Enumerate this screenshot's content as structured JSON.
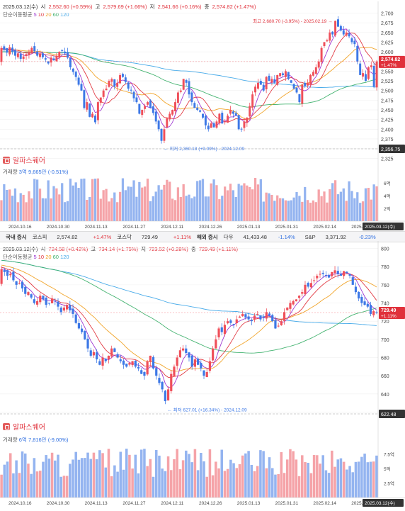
{
  "top": {
    "header": {
      "date": "2025.03.12(수)",
      "open_lbl": "시",
      "open": "2,552.60 (+0.59%)",
      "high_lbl": "고",
      "high": "2,579.69 (+1.66%)",
      "low_lbl": "저",
      "low": "2,541.66 (+0.16%)",
      "close_lbl": "종",
      "close": "2,574.82 (+1.47%)"
    },
    "ma_legend": {
      "label": "단순이동평균",
      "p5": "5",
      "p10": "10",
      "p20": "20",
      "p60": "60",
      "p120": "120"
    },
    "brand": "알파스퀘어",
    "volume": {
      "label": "거래량",
      "value": "3억 9,665만 (-0.51%)"
    },
    "hi_note": "최고 2,680.70 (-3.95%) - 2025.02.19 →",
    "lo_note": "← 최저 2,360.18 (+9.09%) - 2024.12.09",
    "last_tag": "2,574.82",
    "last_pct": "+1.47%",
    "min_tag": "2,356.75",
    "date_tag": "2025.03.12(수)",
    "vol_ticks": [
      "6억",
      "4억",
      "2억"
    ]
  },
  "ticker": {
    "domestic": "국내 증시",
    "kospi": "코스피",
    "kospi_v": "2,574.82",
    "kospi_c": "+1.47%",
    "kosdaq": "코스닥",
    "kosdaq_v": "729.49",
    "kosdaq_c": "+1.11%",
    "foreign": "해외 증시",
    "dow": "다우",
    "dow_v": "41,433.48",
    "dow_c": "-1.14%",
    "snp": "S&P",
    "snp_v": "3,371.92",
    "snp_c": "-0.23%"
  },
  "bottom": {
    "header": {
      "date": "2025.03.12(수)",
      "open_lbl": "시",
      "open": "724.58 (+0.42%)",
      "high_lbl": "고",
      "high": "734.14 (+1.75%)",
      "low_lbl": "저",
      "low": "723.52 (+0.28%)",
      "close_lbl": "종",
      "close": "729.49 (+1.11%)"
    },
    "ma_legend": {
      "label": "단순이동평균",
      "p5": "5",
      "p10": "10",
      "p20": "20",
      "p60": "60",
      "p120": "120"
    },
    "brand": "알파스퀘어",
    "volume": {
      "label": "거래량",
      "value": "6억 7,816만 (-9.00%)"
    },
    "hi_note": "최고 781.54 (-6.66%) - 2025.02.20 →",
    "lo_note": "← 최저 627.01 (+16.34%) - 2024.12.09",
    "last_tag": "729.49",
    "last_pct": "+1.11%",
    "min_tag": "622.48",
    "date_tag": "2025.03.12(수)",
    "vol_ticks": [
      "7.5억",
      "5억",
      "2.5억"
    ]
  },
  "colors": {
    "up": "#ef4f5a",
    "down": "#3d78e6",
    "vol_up": "#f5a3a8",
    "vol_down": "#94b4f0",
    "ma5": "#9b2fd1",
    "ma10": "#e0313b",
    "ma20": "#f0a020",
    "ma60": "#3cb06a",
    "ma120": "#3fa6e8"
  },
  "chart_data": [
    {
      "type": "candlestick",
      "title": "코스피",
      "x_ticks": [
        "2024.10.16",
        "2024.10.30",
        "2024.11.13",
        "2024.11.27",
        "2024.12.11",
        "2024.12.26",
        "2025.01.13",
        "2025.01.31",
        "2025.02.14",
        "2025.02.28"
      ],
      "y_ticks": [
        2700,
        2675,
        2650,
        2625,
        2600,
        2575,
        2550,
        2525,
        2500,
        2475,
        2450,
        2425,
        2400,
        2375,
        2350,
        2325
      ],
      "ylim": [
        2320,
        2712
      ],
      "closes": [
        2610,
        2605,
        2598,
        2612,
        2600,
        2590,
        2596,
        2582,
        2588,
        2594,
        2600,
        2610,
        2602,
        2590,
        2596,
        2586,
        2580,
        2570,
        2585,
        2578,
        2590,
        2600,
        2604,
        2596,
        2585,
        2560,
        2548,
        2535,
        2515,
        2500,
        2455,
        2470,
        2432,
        2440,
        2418,
        2470,
        2482,
        2500,
        2505,
        2525,
        2530,
        2510,
        2520,
        2540,
        2535,
        2522,
        2505,
        2500,
        2480,
        2470,
        2440,
        2450,
        2460,
        2470,
        2455,
        2442,
        2420,
        2400,
        2370,
        2400,
        2428,
        2440,
        2450,
        2470,
        2495,
        2500,
        2530,
        2520,
        2490,
        2470,
        2455,
        2450,
        2445,
        2430,
        2410,
        2400,
        2415,
        2405,
        2420,
        2440,
        2415,
        2420,
        2435,
        2450,
        2440,
        2435,
        2400,
        2400,
        2420,
        2430,
        2460,
        2490,
        2510,
        2520,
        2515,
        2500,
        2535,
        2525,
        2530,
        2520,
        2540,
        2545,
        2540,
        2550,
        2530,
        2520,
        2505,
        2495,
        2470,
        2515,
        2512,
        2520,
        2540,
        2548,
        2560,
        2575,
        2610,
        2625,
        2630,
        2650,
        2645,
        2680,
        2665,
        2655,
        2645,
        2650,
        2640,
        2625,
        2620,
        2575,
        2540,
        2545,
        2525,
        2560,
        2565,
        2510,
        2575
      ],
      "volume_unit": "억 (approx)",
      "last": {
        "close": 2574.82,
        "change_pct": 1.47
      },
      "high": {
        "value": 2680.7,
        "date": "2025.02.19"
      },
      "low": {
        "value": 2360.18,
        "date": "2024.12.09"
      }
    },
    {
      "type": "candlestick",
      "title": "코스닥",
      "x_ticks": [
        "2024.10.16",
        "2024.10.30",
        "2024.11.13",
        "2024.11.27",
        "2024.12.11",
        "2024.12.26",
        "2025.01.13",
        "2025.01.31",
        "2025.02.14",
        "2025.02.28"
      ],
      "y_ticks": [
        800,
        780,
        760,
        740,
        720,
        700,
        680,
        660,
        640,
        620
      ],
      "ylim": [
        618,
        802
      ],
      "closes": [
        777,
        774,
        770,
        772,
        765,
        760,
        762,
        756,
        750,
        752,
        746,
        740,
        742,
        748,
        744,
        738,
        740,
        745,
        742,
        736,
        730,
        735,
        738,
        732,
        728,
        718,
        712,
        708,
        700,
        690,
        682,
        686,
        678,
        672,
        680,
        676,
        682,
        690,
        686,
        680,
        676,
        672,
        670,
        674,
        676,
        670,
        668,
        662,
        660,
        676,
        682,
        668,
        660,
        652,
        645,
        632,
        645,
        662,
        670,
        680,
        688,
        690,
        685,
        680,
        670,
        678,
        672,
        668,
        660,
        664,
        676,
        690,
        700,
        712,
        708,
        716,
        720,
        718,
        716,
        722,
        725,
        728,
        724,
        722,
        720,
        726,
        728,
        722,
        724,
        730,
        726,
        720,
        712,
        715,
        720,
        730,
        735,
        740,
        742,
        744,
        748,
        752,
        760,
        758,
        762,
        765,
        770,
        772,
        772,
        770,
        768,
        774,
        776,
        772,
        770,
        775,
        773,
        770,
        760,
        752,
        745,
        740,
        738,
        736,
        728,
        731,
        729
      ],
      "last": {
        "close": 729.49,
        "change_pct": 1.11
      },
      "high": {
        "value": 781.54,
        "date": "2025.02.20"
      },
      "low": {
        "value": 627.01,
        "date": "2024.12.09"
      }
    }
  ]
}
